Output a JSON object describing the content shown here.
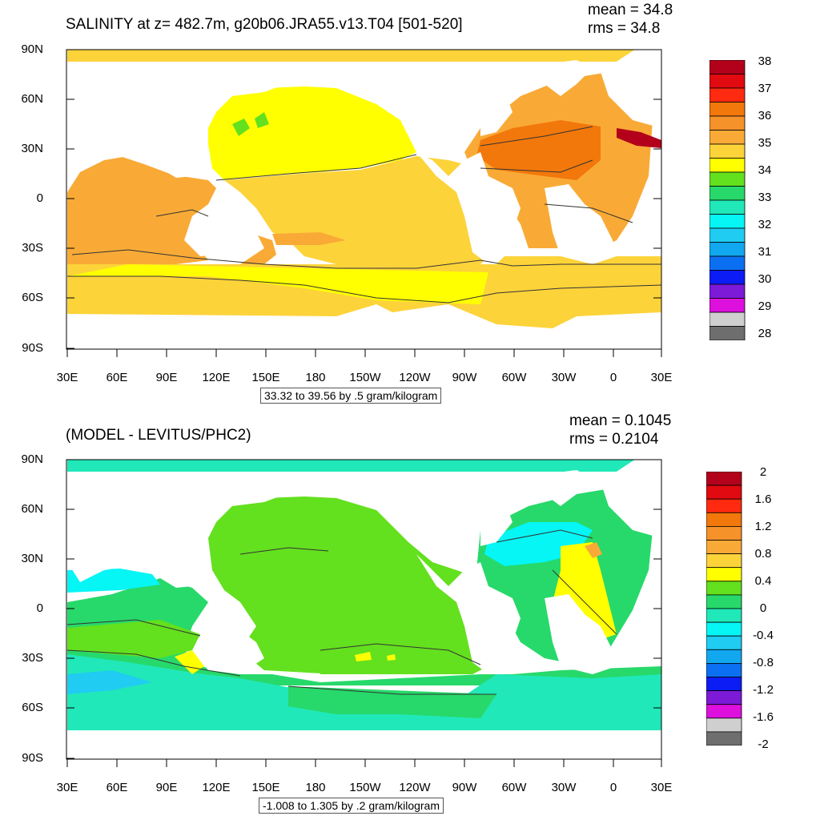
{
  "panels": [
    {
      "title": "SALINITY at z= 482.7m, g20b06.JRA55.v13.T04 [501-520]",
      "mean": "mean = 34.8",
      "rms": "rms = 34.8",
      "subtitle": "33.32 to 39.56 by .5 gram/kilogram",
      "y_labels": [
        "90N",
        "60N",
        "30N",
        "0",
        "30S",
        "60S",
        "90S"
      ],
      "x_labels": [
        "30E",
        "60E",
        "90E",
        "120E",
        "150E",
        "180",
        "150W",
        "120W",
        "90W",
        "60W",
        "30W",
        "0",
        "30E"
      ],
      "colorbar_labels": [
        "38",
        "37",
        "36",
        "35",
        "34",
        "33",
        "32",
        "31",
        "30",
        "29",
        "28"
      ],
      "colorbar_colors": [
        "#b3001b",
        "#e00a10",
        "#ff2a0f",
        "#f2780b",
        "#f5922a",
        "#f9aa36",
        "#fdd33a",
        "#ffff00",
        "#63e01e",
        "#27d96a",
        "#20e8b8",
        "#06f5f5",
        "#20ccf2",
        "#11a8f0",
        "#0b6ff2",
        "#0c1cf5",
        "#7c1ad8",
        "#dd10dd",
        "#cfcfcf",
        "#6e6e6e"
      ]
    },
    {
      "title": "(MODEL - LEVITUS/PHC2)",
      "mean": "mean = 0.1045",
      "rms": "rms = 0.2104",
      "subtitle": "-1.008 to 1.305 by .2 gram/kilogram",
      "y_labels": [
        "90N",
        "60N",
        "30N",
        "0",
        "30S",
        "60S",
        "90S"
      ],
      "x_labels": [
        "30E",
        "60E",
        "90E",
        "120E",
        "150E",
        "180",
        "150W",
        "120W",
        "90W",
        "60W",
        "30W",
        "0",
        "30E"
      ],
      "colorbar_labels": [
        "2",
        "1.6",
        "1.2",
        "0.8",
        "0.4",
        "0",
        "-0.4",
        "-0.8",
        "-1.2",
        "-1.6",
        "-2"
      ],
      "colorbar_colors": [
        "#b3001b",
        "#e00a10",
        "#ff2a0f",
        "#f2780b",
        "#f5922a",
        "#f9aa36",
        "#fdd33a",
        "#ffff00",
        "#63e01e",
        "#27d96a",
        "#20e8b8",
        "#06f5f5",
        "#20ccf2",
        "#11a8f0",
        "#0b6ff2",
        "#0c1cf5",
        "#7c1ad8",
        "#dd10dd",
        "#cfcfcf",
        "#6e6e6e"
      ]
    }
  ]
}
